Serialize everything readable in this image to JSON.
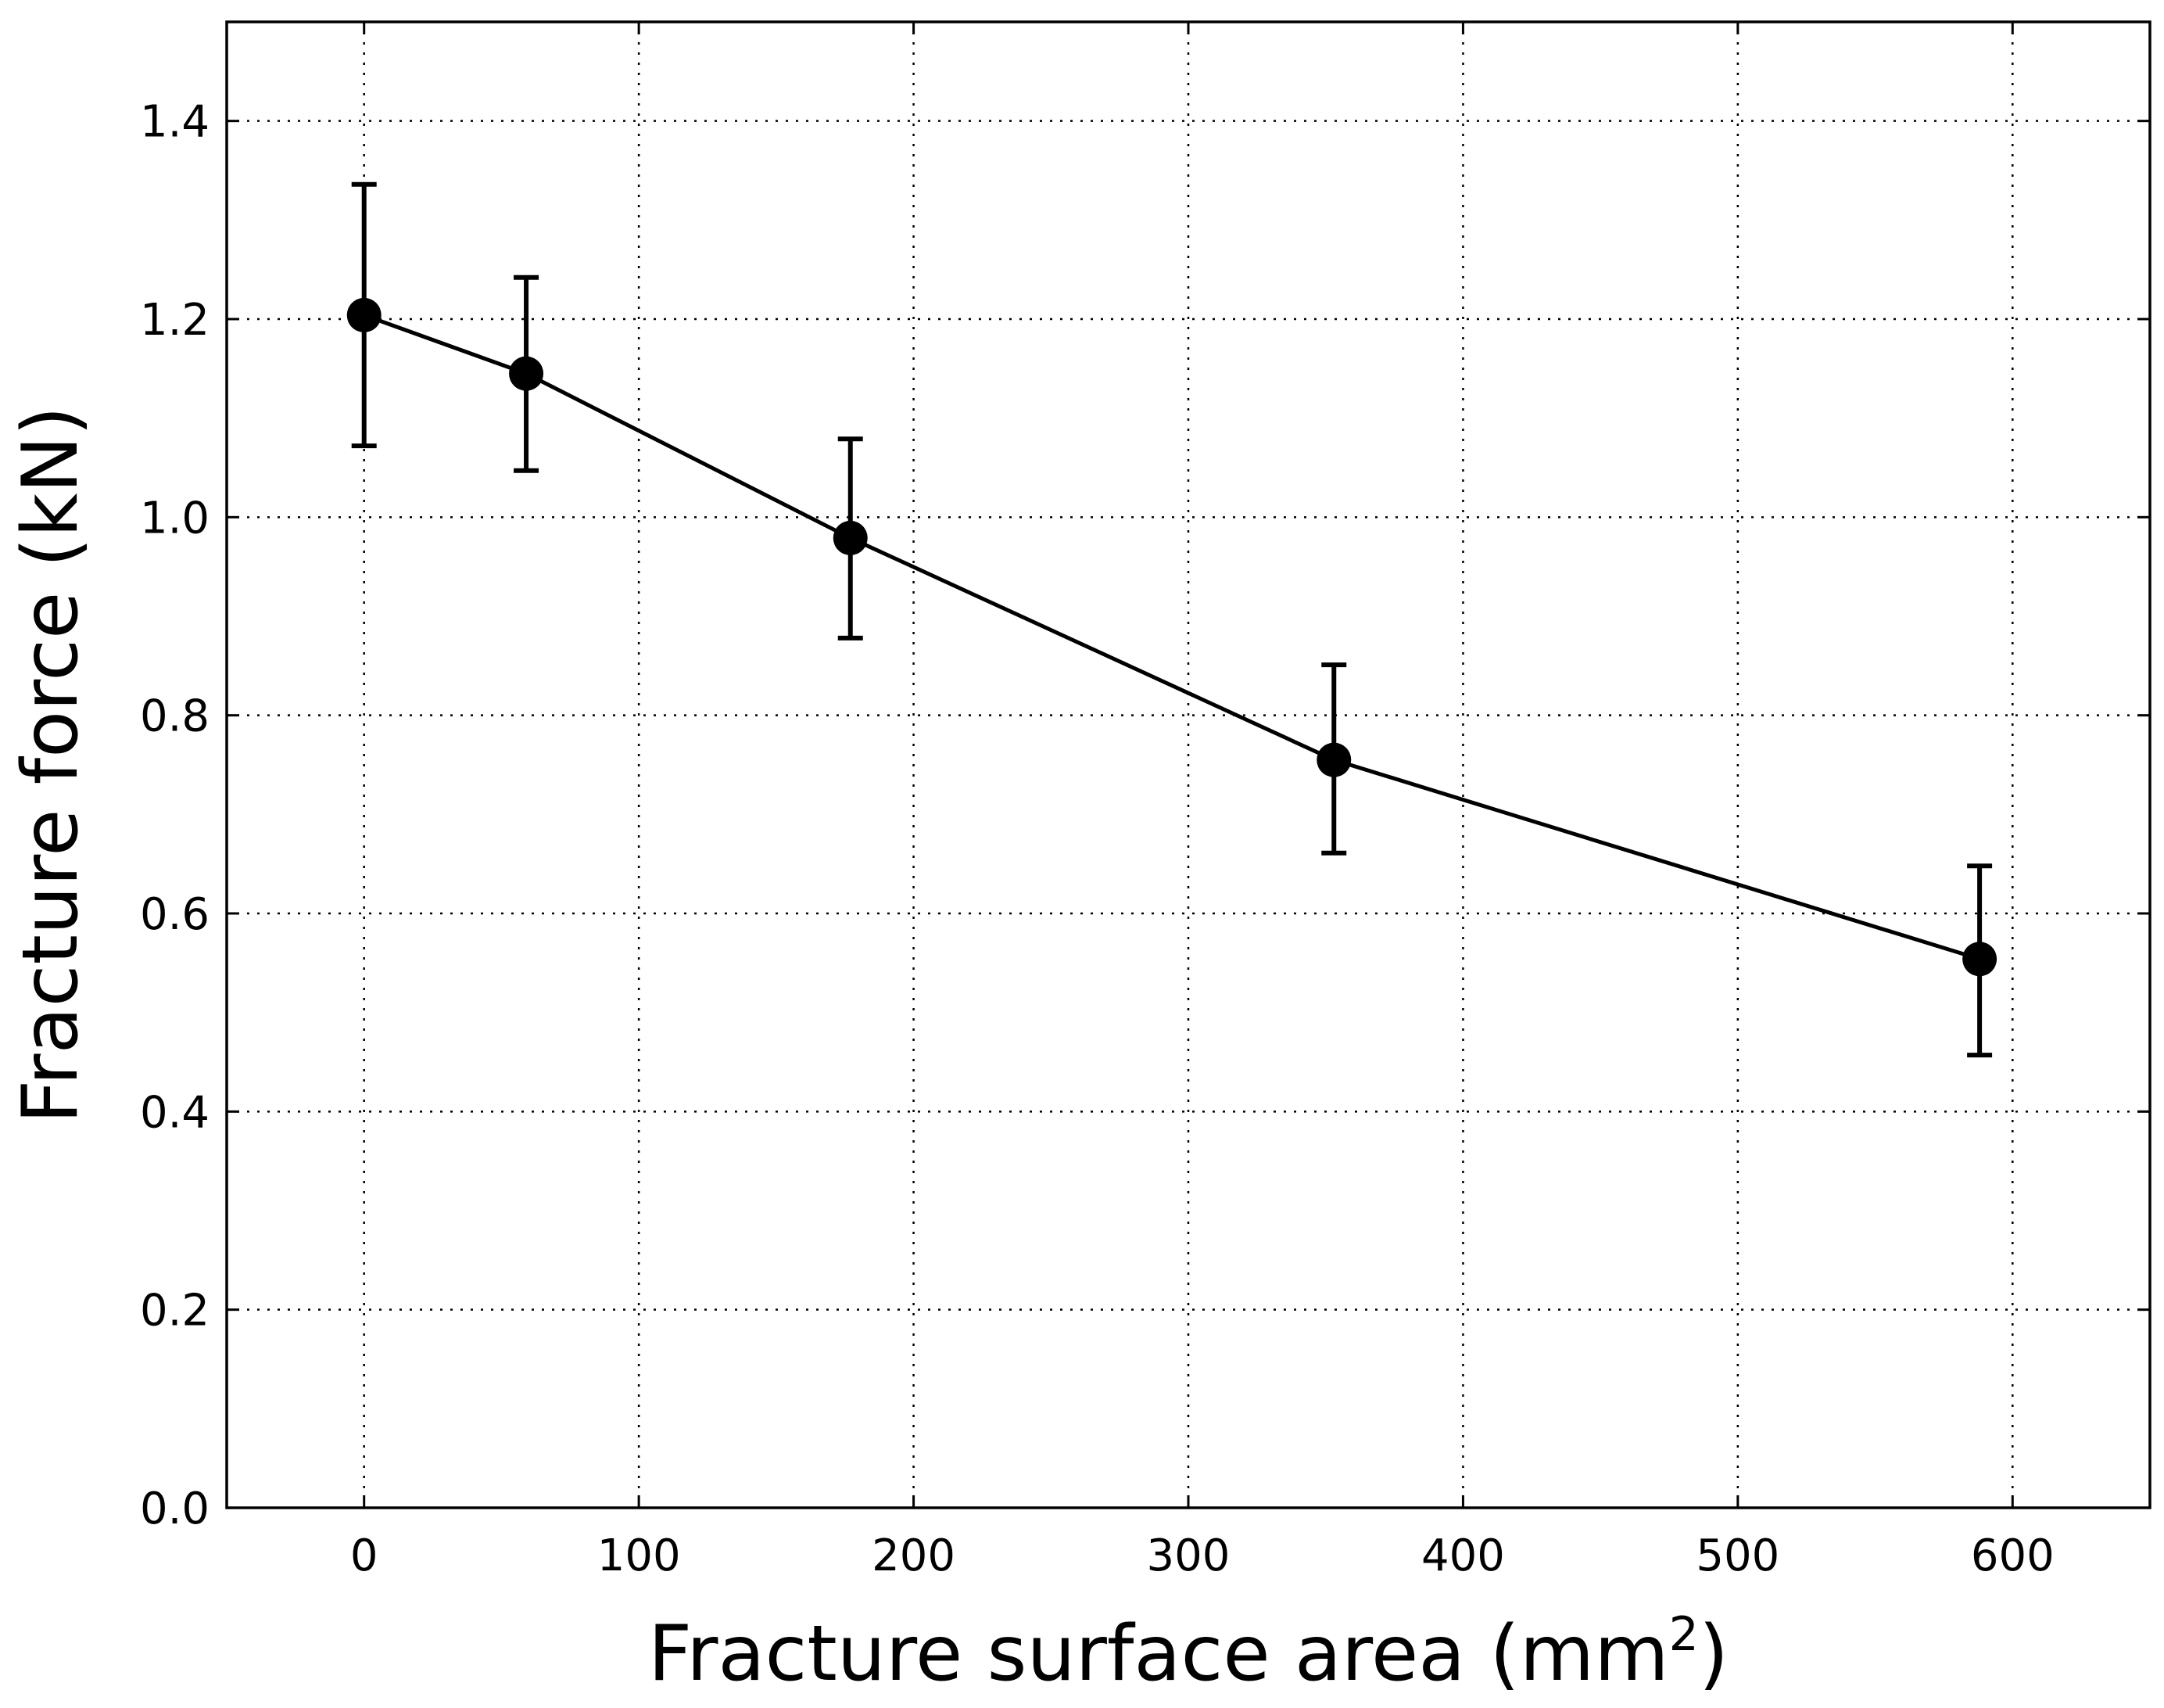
{
  "chart_data": {
    "type": "line",
    "title": "",
    "xlabel": "Fracture surface area (mm",
    "xlabel_sup": "2",
    "xlabel_close": ")",
    "ylabel": "Fracture force (kN)",
    "xlim": [
      -50,
      650
    ],
    "ylim": [
      0.0,
      1.5
    ],
    "x_ticks": [
      0,
      100,
      200,
      300,
      400,
      500,
      600
    ],
    "x_tick_labels": [
      "0",
      "100",
      "200",
      "300",
      "400",
      "500",
      "600"
    ],
    "y_ticks": [
      0.0,
      0.2,
      0.4,
      0.6,
      0.8,
      1.0,
      1.2,
      1.4
    ],
    "y_tick_labels": [
      "0.0",
      "0.2",
      "0.4",
      "0.6",
      "0.8",
      "1.0",
      "1.2",
      "1.4"
    ],
    "grid": true,
    "series": [
      {
        "color": "#000000",
        "marker": "circle",
        "x": [
          0,
          59,
          177,
          353,
          588
        ],
        "y": [
          1.204,
          1.145,
          0.979,
          0.755,
          0.554
        ],
        "error_low": [
          1.072,
          1.047,
          0.878,
          0.661,
          0.457
        ],
        "error_high": [
          1.336,
          1.242,
          1.079,
          0.851,
          0.648
        ]
      }
    ]
  }
}
